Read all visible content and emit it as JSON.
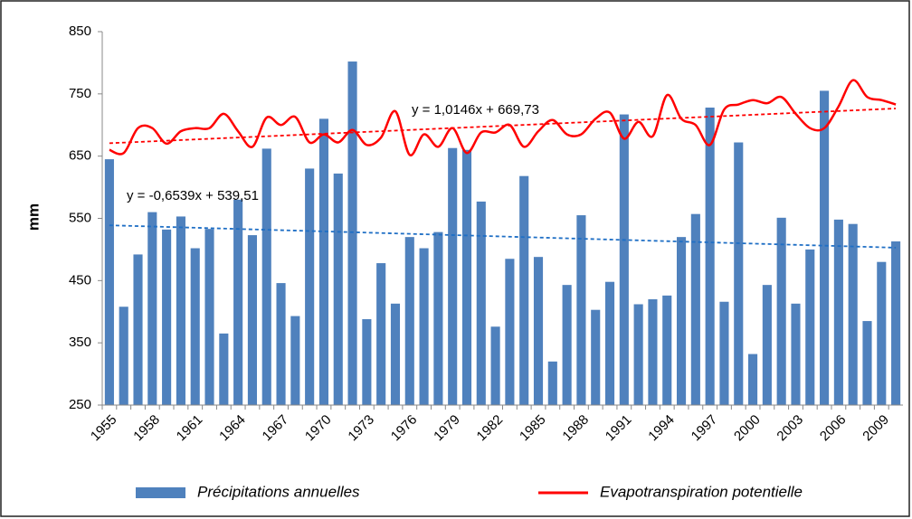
{
  "chart_data": {
    "type": "bar",
    "y_label": "mm",
    "categories": [
      "1955",
      null,
      null,
      "1958",
      null,
      null,
      "1961",
      null,
      null,
      "1964",
      null,
      null,
      "1967",
      null,
      null,
      "1970",
      null,
      null,
      "1973",
      null,
      null,
      "1976",
      null,
      null,
      "1979",
      null,
      null,
      "1982",
      null,
      null,
      "1985",
      null,
      null,
      "1988",
      null,
      null,
      "1991",
      null,
      null,
      "1994",
      null,
      null,
      "1997",
      null,
      null,
      "2000",
      null,
      null,
      "2003",
      null,
      null,
      "2006",
      null,
      null,
      "2009",
      null
    ],
    "series": [
      {
        "name": "Précipitations annuelles",
        "type": "bar",
        "color": "#4f81bd",
        "values": [
          645,
          408,
          492,
          560,
          532,
          553,
          502,
          533,
          365,
          580,
          523,
          662,
          446,
          393,
          630,
          710,
          622,
          802,
          388,
          478,
          413,
          520,
          502,
          528,
          663,
          660,
          577,
          376,
          485,
          618,
          488,
          320,
          443,
          555,
          403,
          448,
          717,
          412,
          420,
          426,
          520,
          557,
          728,
          416,
          672,
          332,
          443,
          551,
          413,
          500,
          755,
          548,
          541,
          385,
          480,
          513
        ]
      },
      {
        "name": "Evapotranspiration potentielle",
        "type": "line",
        "color": "#ff0000",
        "values": [
          660,
          655,
          695,
          695,
          670,
          690,
          695,
          695,
          718,
          690,
          665,
          712,
          700,
          713,
          672,
          685,
          672,
          692,
          668,
          680,
          722,
          652,
          685,
          665,
          695,
          655,
          688,
          688,
          700,
          665,
          690,
          708,
          685,
          685,
          710,
          720,
          678,
          705,
          682,
          748,
          710,
          700,
          668,
          725,
          733,
          740,
          735,
          745,
          718,
          695,
          695,
          730,
          772,
          745,
          740,
          733
        ]
      }
    ],
    "trendlines": [
      {
        "label": "y = 1,0146x + 669,73",
        "slope": 1.0146,
        "intercept": 669.73,
        "color": "#ff0000"
      },
      {
        "label": "y = -0,6539x + 539,51",
        "slope": -0.6539,
        "intercept": 539.51,
        "color": "#1f6fc5"
      }
    ],
    "ylim": [
      250,
      850
    ],
    "yticks": [
      250,
      350,
      450,
      550,
      650,
      750,
      850
    ],
    "grid": false,
    "legend": "bottom"
  }
}
